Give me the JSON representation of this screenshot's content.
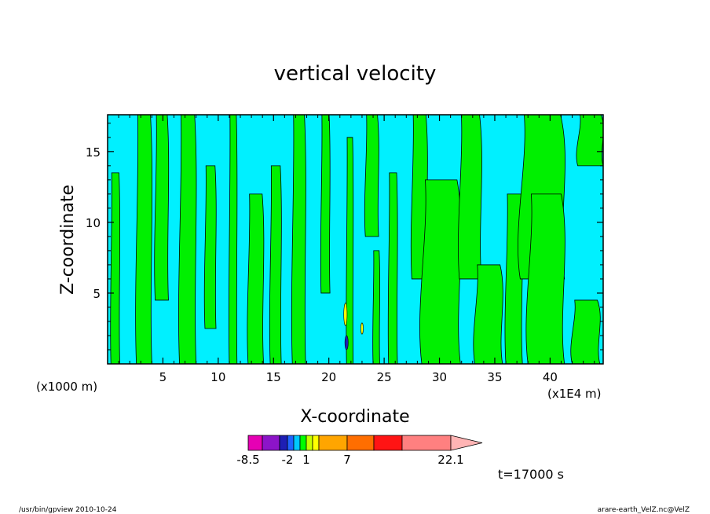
{
  "chart_data": {
    "type": "heatmap",
    "title": "vertical velocity",
    "xlabel": "X-coordinate",
    "ylabel": "Z-coordinate",
    "x_unit": "(x1E4 m)",
    "y_unit": "(x1000 m)",
    "xlim": [
      0,
      44.8
    ],
    "ylim": [
      0,
      17.6
    ],
    "x_ticks": [
      5,
      10,
      15,
      20,
      25,
      30,
      35,
      40
    ],
    "y_ticks": [
      5,
      10,
      15
    ],
    "grid": false,
    "time_label": "t=17000 s",
    "colorbar": {
      "orientation": "horizontal",
      "tick_labels": [
        "-8.5",
        "-2",
        "1",
        "7",
        "22.1"
      ],
      "colors": [
        "#e600b4",
        "#8c14c8",
        "#1e1eb4",
        "#1e64ff",
        "#00c8ff",
        "#00ff00",
        "#c8ff00",
        "#ffff00",
        "#ffa500",
        "#ff6e00",
        "#ff1414",
        "#ff8080",
        "#ffb4b4"
      ]
    },
    "field_colors": {
      "negative": "#00f0ff",
      "positive": "#00f000"
    },
    "field_columns": [
      {
        "x": 0.3,
        "w": 0.8,
        "zmin": 0,
        "zmax": 13.5
      },
      {
        "x": 2.6,
        "w": 1.4,
        "zmin": 0,
        "zmax": 17.6
      },
      {
        "x": 4.3,
        "w": 1.2,
        "zmin": 4.5,
        "zmax": 17.6
      },
      {
        "x": 6.5,
        "w": 1.5,
        "zmin": 0,
        "zmax": 17.6
      },
      {
        "x": 8.8,
        "w": 1.0,
        "zmin": 2.5,
        "zmax": 14.0
      },
      {
        "x": 11.0,
        "w": 0.7,
        "zmin": 0,
        "zmax": 17.6
      },
      {
        "x": 12.7,
        "w": 1.4,
        "zmin": 0,
        "zmax": 12.0
      },
      {
        "x": 14.7,
        "w": 1.0,
        "zmin": 0,
        "zmax": 14.0
      },
      {
        "x": 16.7,
        "w": 1.2,
        "zmin": 0,
        "zmax": 17.6
      },
      {
        "x": 19.3,
        "w": 0.8,
        "zmin": 5.0,
        "zmax": 17.6
      },
      {
        "x": 21.6,
        "w": 0.6,
        "zmin": 0,
        "zmax": 16.0
      },
      {
        "x": 23.3,
        "w": 1.2,
        "zmin": 9.0,
        "zmax": 17.6
      },
      {
        "x": 24.0,
        "w": 0.6,
        "zmin": 0,
        "zmax": 8.0
      },
      {
        "x": 25.4,
        "w": 0.8,
        "zmin": 0,
        "zmax": 13.5
      },
      {
        "x": 27.5,
        "w": 1.4,
        "zmin": 6.0,
        "zmax": 17.6
      },
      {
        "x": 28.4,
        "w": 3.5,
        "zmin": 0,
        "zmax": 13.0
      },
      {
        "x": 31.8,
        "w": 2.0,
        "zmin": 6.0,
        "zmax": 17.6
      },
      {
        "x": 33.2,
        "w": 2.5,
        "zmin": 0,
        "zmax": 7.0
      },
      {
        "x": 36.0,
        "w": 1.5,
        "zmin": 0,
        "zmax": 12.0
      },
      {
        "x": 37.3,
        "w": 4.0,
        "zmin": 6.0,
        "zmax": 17.6
      },
      {
        "x": 38.0,
        "w": 3.3,
        "zmin": 0,
        "zmax": 12.0
      },
      {
        "x": 42.0,
        "w": 2.5,
        "zmin": 0,
        "zmax": 4.5
      },
      {
        "x": 42.5,
        "w": 2.3,
        "zmin": 14.0,
        "zmax": 17.6
      }
    ],
    "field_spots": [
      {
        "x": 21.5,
        "y": 3.5,
        "w": 0.3,
        "h": 1.6,
        "color": "#ffff00"
      },
      {
        "x": 21.6,
        "y": 1.5,
        "w": 0.3,
        "h": 1.0,
        "color": "#1e1eb4"
      },
      {
        "x": 23.0,
        "y": 2.5,
        "w": 0.2,
        "h": 0.8,
        "color": "#ffff00"
      }
    ]
  },
  "footer": {
    "left": "/usr/bin/gpview   2010-10-24",
    "right": "arare-earth_VelZ.nc@VelZ"
  }
}
